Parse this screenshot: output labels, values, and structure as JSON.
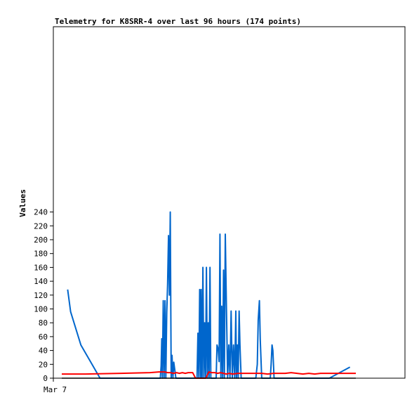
{
  "chart_data": {
    "type": "line",
    "title": "Telemetry for K8SRR-4 over last 96 hours (174 points)",
    "xlabel": "",
    "ylabel": "Values",
    "x_tick_labels": [
      "Mar 7"
    ],
    "y_ticks": [
      0,
      20,
      40,
      60,
      80,
      100,
      120,
      140,
      160,
      180,
      200,
      220,
      240
    ],
    "ylim": [
      0,
      255
    ],
    "xlim": [
      0,
      1
    ],
    "grid": false,
    "legend": "none",
    "series": [
      {
        "color": "#0066cc",
        "x": [
          0.02,
          0.03,
          0.065,
          0.13,
          0.165,
          0.335,
          0.338,
          0.34,
          0.342,
          0.345,
          0.348,
          0.351,
          0.354,
          0.357,
          0.36,
          0.363,
          0.366,
          0.369,
          0.372,
          0.375,
          0.378,
          0.381,
          0.388,
          0.46,
          0.463,
          0.466,
          0.469,
          0.472,
          0.474,
          0.477,
          0.48,
          0.483,
          0.486,
          0.489,
          0.492,
          0.495,
          0.498,
          0.501,
          0.504,
          0.507,
          0.51,
          0.513,
          0.516,
          0.519,
          0.522,
          0.525,
          0.528,
          0.532,
          0.535,
          0.538,
          0.541,
          0.544,
          0.547,
          0.55,
          0.553,
          0.556,
          0.56,
          0.564,
          0.568,
          0.572,
          0.576,
          0.58,
          0.584,
          0.588,
          0.592,
          0.594,
          0.597,
          0.6,
          0.603,
          0.606,
          0.61,
          0.62,
          0.66,
          0.665,
          0.668,
          0.672,
          0.675,
          0.68,
          0.706,
          0.709,
          0.712,
          0.715,
          0.718,
          0.722,
          0.78,
          0.81,
          0.818,
          0.821,
          0.824,
          0.83,
          0.864,
          0.88,
          0.91,
          0.98
        ],
        "y": [
          128,
          96,
          48,
          0,
          0,
          0,
          18,
          57,
          0,
          112,
          0,
          112,
          0,
          95,
          136,
          206,
          120,
          240,
          0,
          33,
          0,
          23,
          0,
          0,
          65,
          0,
          128,
          0,
          128,
          0,
          160,
          0,
          80,
          0,
          160,
          0,
          80,
          0,
          160,
          0,
          0,
          0,
          0,
          0,
          0,
          0,
          48,
          42,
          24,
          208,
          0,
          104,
          0,
          156,
          0,
          208,
          104,
          0,
          48,
          0,
          97,
          0,
          48,
          0,
          97,
          0,
          48,
          0,
          97,
          48,
          0,
          0,
          0,
          20,
          84,
          112,
          56,
          0,
          0,
          0,
          20,
          48,
          40,
          0,
          0,
          0,
          0,
          0,
          0,
          0,
          0,
          0,
          0,
          16
        ]
      },
      {
        "color": "#ff0000",
        "x": [
          0.0,
          0.08,
          0.2,
          0.3,
          0.33,
          0.35,
          0.36,
          0.37,
          0.38,
          0.39,
          0.4,
          0.41,
          0.42,
          0.43,
          0.445,
          0.455,
          0.46,
          0.47,
          0.48,
          0.49,
          0.5,
          0.51,
          0.52,
          0.53,
          0.54,
          0.55,
          0.56,
          0.57,
          0.58,
          0.6,
          0.62,
          0.64,
          0.66,
          0.68,
          0.7,
          0.72,
          0.74,
          0.76,
          0.78,
          0.8,
          0.82,
          0.84,
          0.86,
          0.88,
          0.9,
          0.95,
          1.0
        ],
        "y": [
          6,
          6,
          7,
          8,
          9,
          9,
          8,
          8,
          7,
          8,
          7,
          8,
          7,
          8,
          8,
          0,
          0,
          0,
          0,
          0,
          9,
          8,
          8,
          7,
          8,
          7,
          6,
          7,
          6,
          7,
          7,
          7,
          7,
          7,
          6,
          7,
          7,
          7,
          8,
          7,
          6,
          7,
          6,
          7,
          7,
          7,
          7
        ]
      },
      {
        "color": "#000000",
        "x": [
          0.0,
          1.0
        ],
        "y": [
          0,
          0
        ]
      }
    ]
  }
}
